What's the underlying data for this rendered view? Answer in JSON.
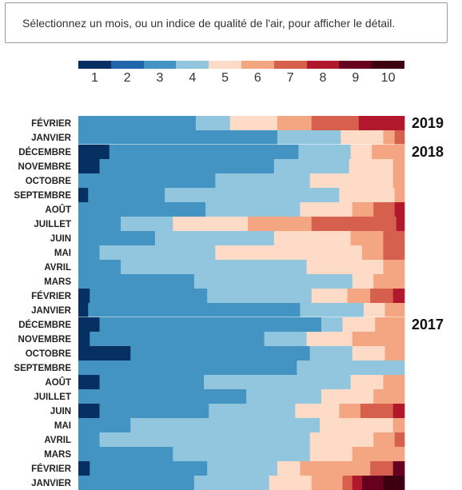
{
  "info": {
    "text": "Sélectionnez un mois, ou un indice de qualité de l'air, pour afficher le détail."
  },
  "legend": {
    "labels": [
      "1",
      "2",
      "3",
      "4",
      "5",
      "6",
      "7",
      "8",
      "9",
      "10"
    ],
    "colors": [
      "#053061",
      "#2166ac",
      "#4393c3",
      "#92c5de",
      "#fddbc7",
      "#f4a582",
      "#d6604d",
      "#b2182b",
      "#67001f",
      "#3d0011"
    ]
  },
  "chart_data": {
    "type": "heatmap",
    "description_unit": "share of days (%) per air quality index level 1-10",
    "groups": [
      {
        "year": "2019",
        "months": [
          {
            "label": "FÉVRIER",
            "shares": [
              0,
              0,
              36,
              10.5,
              14.5,
              10.5,
              14.5,
              14,
              0,
              0
            ]
          },
          {
            "label": "JANVIER",
            "shares": [
              0,
              0,
              61,
              19.5,
              13,
              3.5,
              3,
              0,
              0,
              0
            ]
          }
        ]
      },
      {
        "year": "2018",
        "months": [
          {
            "label": "DÉCEMBRE",
            "shares": [
              9.5,
              0,
              58,
              16,
              6.5,
              10,
              0,
              0,
              0,
              0
            ]
          },
          {
            "label": "NOVEMBRE",
            "shares": [
              6.5,
              0,
              53.5,
              23,
              13.5,
              3.5,
              0,
              0,
              0,
              0
            ]
          },
          {
            "label": "OCTOBRE",
            "shares": [
              0,
              0,
              42,
              29,
              25.5,
              3.5,
              0,
              0,
              0,
              0
            ]
          },
          {
            "label": "SEPTEMBRE",
            "shares": [
              3,
              0,
              23.5,
              53.5,
              17,
              3,
              0,
              0,
              0,
              0
            ]
          },
          {
            "label": "AOÛT",
            "shares": [
              0,
              0,
              39,
              29,
              16,
              6.5,
              6.5,
              3,
              0,
              0
            ]
          },
          {
            "label": "JUILLET",
            "shares": [
              0,
              0,
              13,
              16,
              23,
              19.5,
              26,
              2.5,
              0,
              0
            ]
          },
          {
            "label": "JUIN",
            "shares": [
              0,
              0,
              23.5,
              36.5,
              23.5,
              10,
              6.5,
              0,
              0,
              0
            ]
          },
          {
            "label": "MAI",
            "shares": [
              0,
              0,
              6.5,
              35.5,
              45,
              6.5,
              6.5,
              0,
              0,
              0
            ]
          },
          {
            "label": "AVRIL",
            "shares": [
              0,
              0,
              13,
              57,
              23.5,
              6.5,
              0,
              0,
              0,
              0
            ]
          },
          {
            "label": "MARS",
            "shares": [
              0,
              0,
              35.5,
              48.5,
              6.5,
              9.5,
              0,
              0,
              0,
              0
            ]
          },
          {
            "label": "FÉVRIER",
            "shares": [
              3.5,
              0,
              36,
              32,
              11,
              7,
              7,
              3.5,
              0,
              0
            ]
          },
          {
            "label": "JANVIER",
            "shares": [
              3,
              0,
              65,
              19.5,
              6.5,
              6,
              0,
              0,
              0,
              0
            ]
          }
        ]
      },
      {
        "year": "2017",
        "months": [
          {
            "label": "DÉCEMBRE",
            "shares": [
              6.5,
              0,
              68,
              6.5,
              10,
              9,
              0,
              0,
              0,
              0
            ]
          },
          {
            "label": "NOVEMBRE",
            "shares": [
              3.5,
              0,
              53.5,
              13,
              14,
              16,
              0,
              0,
              0,
              0
            ]
          },
          {
            "label": "OCTOBRE",
            "shares": [
              16,
              0,
              55,
              13,
              10,
              6,
              0,
              0,
              0,
              0
            ]
          },
          {
            "label": "SEPTEMBRE",
            "shares": [
              0,
              0,
              67,
              33,
              0,
              0,
              0,
              0,
              0,
              0
            ]
          },
          {
            "label": "AOÛT",
            "shares": [
              6.5,
              0,
              32,
              45,
              10,
              6.5,
              0,
              0,
              0,
              0
            ]
          },
          {
            "label": "JUILLET",
            "shares": [
              0,
              0,
              51.5,
              23,
              16,
              9.5,
              0,
              0,
              0,
              0
            ]
          },
          {
            "label": "JUIN",
            "shares": [
              6.5,
              0,
              33.5,
              26.5,
              13.5,
              6.5,
              10,
              3.5,
              0,
              0
            ]
          },
          {
            "label": "MAI",
            "shares": [
              0,
              0,
              16,
              58,
              22.5,
              3.5,
              0,
              0,
              0,
              0
            ]
          },
          {
            "label": "AVRIL",
            "shares": [
              0,
              0,
              6.5,
              64.5,
              19.5,
              6.5,
              3,
              0,
              0,
              0
            ]
          },
          {
            "label": "MARS",
            "shares": [
              0,
              0,
              29,
              42,
              13,
              16,
              0,
              0,
              0,
              0
            ]
          },
          {
            "label": "FÉVRIER",
            "shares": [
              3.5,
              0,
              36,
              21.5,
              7,
              21.5,
              7,
              0,
              3.5,
              0
            ]
          },
          {
            "label": "JANVIER",
            "shares": [
              0,
              0,
              35.5,
              23,
              13,
              9.5,
              3,
              3,
              6.5,
              6.5
            ]
          }
        ]
      }
    ],
    "xlim": [
      0,
      100
    ],
    "color_scale": [
      "#053061",
      "#2166ac",
      "#4393c3",
      "#92c5de",
      "#fddbc7",
      "#f4a582",
      "#d6604d",
      "#b2182b",
      "#67001f",
      "#3d0011"
    ]
  }
}
